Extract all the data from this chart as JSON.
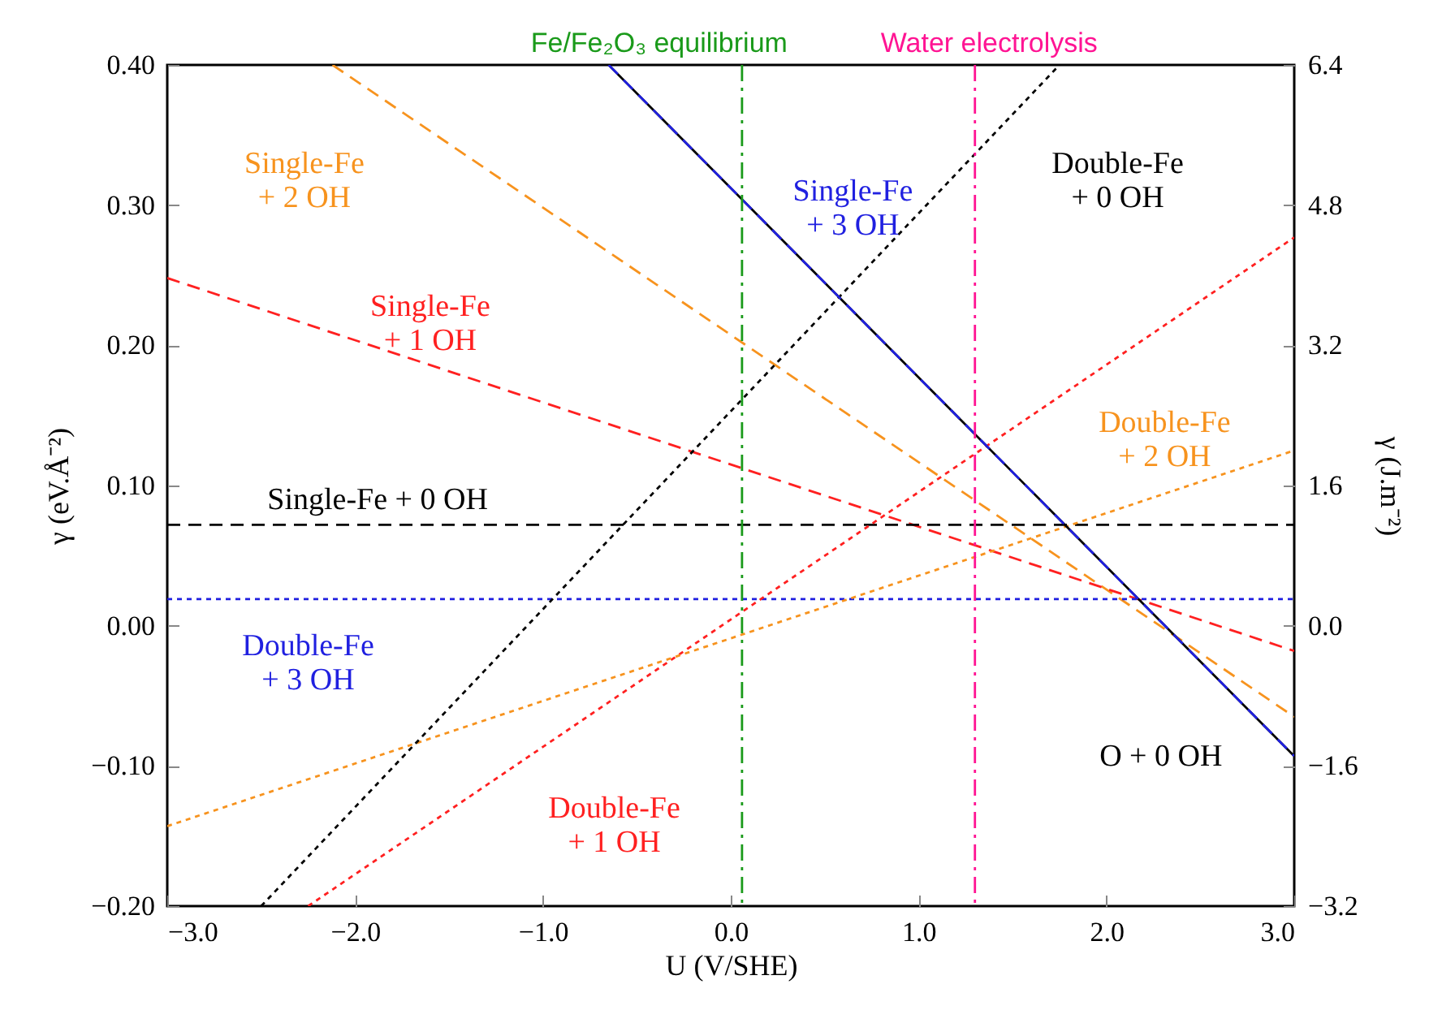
{
  "chart_data": {
    "type": "line",
    "xlabel": "U (V/SHE)",
    "ylabel": "γ (eV.Å⁻²)",
    "y2label": "γ (J.m⁻²)",
    "xlim": [
      -3,
      3
    ],
    "ylim": [
      -0.2,
      0.4
    ],
    "y2lim": [
      -3.2,
      6.4
    ],
    "xticks": [
      {
        "value": -3,
        "label": "−3.0"
      },
      {
        "value": -2,
        "label": "−2.0"
      },
      {
        "value": -1,
        "label": "−1.0"
      },
      {
        "value": 0,
        "label": "0.0"
      },
      {
        "value": 1,
        "label": "1.0"
      },
      {
        "value": 2,
        "label": "2.0"
      },
      {
        "value": 3,
        "label": "3.0"
      }
    ],
    "yticks": [
      {
        "value": -0.2,
        "label": "−0.20"
      },
      {
        "value": -0.1,
        "label": "−0.10"
      },
      {
        "value": 0,
        "label": "0.00"
      },
      {
        "value": 0.1,
        "label": "0.10"
      },
      {
        "value": 0.2,
        "label": "0.20"
      },
      {
        "value": 0.3,
        "label": "0.30"
      },
      {
        "value": 0.4,
        "label": "0.40"
      }
    ],
    "y2ticks": [
      {
        "value": -3.2,
        "label": "−3.2"
      },
      {
        "value": -1.6,
        "label": "−1.6"
      },
      {
        "value": 0,
        "label": "0.0"
      },
      {
        "value": 1.6,
        "label": "1.6"
      },
      {
        "value": 3.2,
        "label": "3.2"
      },
      {
        "value": 4.8,
        "label": "4.8"
      },
      {
        "value": 6.4,
        "label": "6.4"
      }
    ],
    "series": [
      {
        "name": "Single-Fe\n+ 2 OH",
        "color": "#f7931e",
        "line_style": "dashed",
        "x": [
          -2.12,
          3
        ],
        "values": [
          0.4,
          -0.065
        ]
      },
      {
        "name": "Single-Fe\n+ 1 OH",
        "color": "#ff2020",
        "line_style": "dashed",
        "x": [
          -3,
          3
        ],
        "values": [
          0.248,
          -0.018
        ]
      },
      {
        "name": "Single-Fe + 0 OH",
        "color": "#000000",
        "line_style": "dashed",
        "x": [
          -3,
          3
        ],
        "values": [
          0.072,
          0.072
        ]
      },
      {
        "name": "Double-Fe\n+ 3 OH",
        "color": "#2020e0",
        "line_style": "dotted",
        "x": [
          -3,
          3
        ],
        "values": [
          0.019,
          0.019
        ]
      },
      {
        "name": "Double-Fe\n+ 1 OH",
        "color": "#ff2020",
        "line_style": "dotted",
        "x": [
          -2.25,
          3
        ],
        "values": [
          -0.2,
          0.277
        ]
      },
      {
        "name": "Double-Fe\n+ 2 OH",
        "color": "#f7931e",
        "line_style": "dotted",
        "x": [
          -3,
          3
        ],
        "values": [
          -0.143,
          0.125
        ]
      },
      {
        "name": "Double-Fe\n+ 0 OH",
        "color": "#000000",
        "line_style": "dotted",
        "x": [
          -2.5,
          1.75
        ],
        "values": [
          -0.2,
          0.4
        ]
      },
      {
        "name": "O + 0 OH",
        "color": "#000000",
        "line_style": "solid",
        "x": [
          -0.65,
          3
        ],
        "values": [
          0.4,
          -0.093
        ]
      },
      {
        "name": "Single-Fe\n+ 3 OH",
        "color": "#2020e0",
        "line_style": "dashed",
        "x": [
          -0.65,
          3
        ],
        "values": [
          0.4,
          -0.093
        ]
      }
    ],
    "ref_lines": [
      {
        "axis": "x",
        "value": 0.06,
        "label": "Fe/Fe₂O₃ equilibrium",
        "color": "#1a9a1a",
        "line_style": "dashdot"
      },
      {
        "axis": "x",
        "value": 1.3,
        "label": "Water electrolysis",
        "color": "#ff1493",
        "line_style": "dashdot"
      }
    ]
  }
}
